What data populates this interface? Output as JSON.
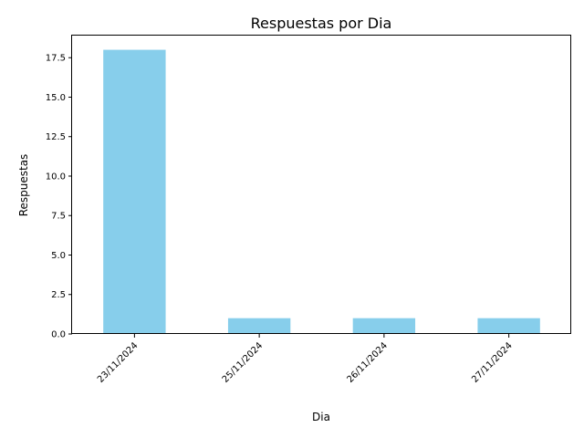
{
  "chart_data": {
    "type": "bar",
    "title": "Respuestas por Dia",
    "xlabel": "Dia",
    "ylabel": "Respuestas",
    "categories": [
      "23/11/2024",
      "25/11/2024",
      "26/11/2024",
      "27/11/2024"
    ],
    "values": [
      18,
      1,
      1,
      1
    ],
    "ylim": [
      0,
      18.9
    ],
    "yticks": [
      "0.0",
      "2.5",
      "5.0",
      "7.5",
      "10.0",
      "12.5",
      "15.0",
      "17.5"
    ],
    "bar_color": "#87CEEB",
    "grid": false,
    "legend": "none"
  }
}
